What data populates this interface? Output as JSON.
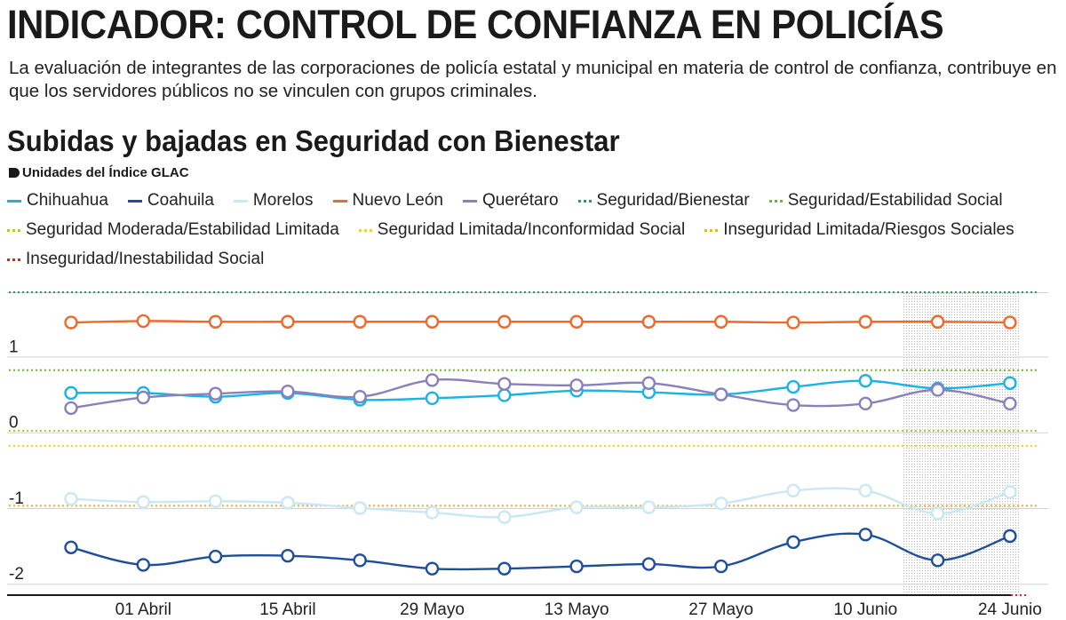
{
  "header": {
    "title": "INDICADOR: CONTROL DE CONFIANZA EN POLICÍAS",
    "description": "La evaluación de integrantes de las corporaciones de policía estatal y municipal en materia de control de confianza, contribuye en que los servidores públicos no se vinculen con grupos criminales."
  },
  "chart_data": {
    "type": "line",
    "title": "Subidas y bajadas en Seguridad con Bienestar",
    "ylabel": "Unidades del Índice GLAC",
    "xlabel": "",
    "ylim": [
      -2.15,
      1.85
    ],
    "y_ticks": [
      {
        "value": 1,
        "label": "1"
      },
      {
        "value": 0,
        "label": "0"
      },
      {
        "value": -1,
        "label": "-1"
      },
      {
        "value": -2,
        "label": "-2"
      }
    ],
    "x_points": 14,
    "x_tick_labels": [
      {
        "index": 1,
        "label": "01 Abril"
      },
      {
        "index": 3,
        "label": "15 Abril"
      },
      {
        "index": 5,
        "label": "29 Mayo"
      },
      {
        "index": 7,
        "label": "13  Mayo"
      },
      {
        "index": 9,
        "label": "27  Mayo"
      },
      {
        "index": 11,
        "label": "10 Junio"
      },
      {
        "index": 13,
        "label": "24  Junio"
      }
    ],
    "highlight_range": [
      12,
      13
    ],
    "series": [
      {
        "name": "Chihuahua",
        "color": "#1ab3e6",
        "values": [
          0.52,
          0.52,
          0.47,
          0.52,
          0.43,
          0.45,
          0.49,
          0.55,
          0.53,
          0.5,
          0.6,
          0.68,
          0.58,
          0.65
        ]
      },
      {
        "name": "Coahuila",
        "color": "#1f4e9a",
        "values": [
          -1.52,
          -1.75,
          -1.64,
          -1.63,
          -1.69,
          -1.8,
          -1.8,
          -1.77,
          -1.74,
          -1.77,
          -1.45,
          -1.35,
          -1.69,
          -1.37
        ]
      },
      {
        "name": "Morelos",
        "color": "#c9e8f4",
        "values": [
          -0.88,
          -0.92,
          -0.91,
          -0.93,
          -1.0,
          -1.06,
          -1.12,
          -0.99,
          -0.99,
          -0.94,
          -0.77,
          -0.77,
          -1.07,
          -0.79
        ]
      },
      {
        "name": "Nuevo León",
        "color": "#ee6a2c",
        "values": [
          1.45,
          1.47,
          1.46,
          1.46,
          1.46,
          1.46,
          1.46,
          1.46,
          1.46,
          1.46,
          1.45,
          1.46,
          1.46,
          1.45
        ]
      },
      {
        "name": "Querétaro",
        "color": "#8a80bb",
        "values": [
          0.32,
          0.46,
          0.51,
          0.54,
          0.47,
          0.69,
          0.64,
          0.62,
          0.65,
          0.5,
          0.36,
          0.38,
          0.56,
          0.38
        ]
      }
    ],
    "thresholds": [
      {
        "name": "Seguridad/Bienestar",
        "color": "#2e9a4c",
        "value": 1.85
      },
      {
        "name": "Seguridad/Estabilidad Social",
        "color": "#72b62e",
        "value": 0.82
      },
      {
        "name": "Seguridad Moderada/Estabilidad Limitada",
        "color": "#b7c72b",
        "value": 0.02
      },
      {
        "name": "Seguridad Limitada/Inconformidad Social",
        "color": "#e8d52a",
        "value": -0.18
      },
      {
        "name": "Inseguridad Limitada/Riesgos Sociales",
        "color": "#e8b12a",
        "value": -0.97
      },
      {
        "name": "Inseguridad/Inestabilidad Social",
        "color": "#d9232a",
        "value": -2.15
      }
    ]
  }
}
